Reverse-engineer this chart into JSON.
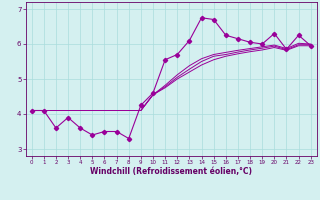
{
  "xlabel": "Windchill (Refroidissement éolien,°C)",
  "x_values": [
    0,
    1,
    2,
    3,
    4,
    5,
    6,
    7,
    8,
    9,
    10,
    11,
    12,
    13,
    14,
    15,
    16,
    17,
    18,
    19,
    20,
    21,
    22,
    23
  ],
  "line1": [
    4.1,
    4.1,
    3.6,
    3.9,
    3.6,
    3.4,
    3.5,
    3.5,
    3.3,
    4.25,
    4.6,
    5.55,
    5.7,
    6.1,
    6.75,
    6.7,
    6.25,
    6.15,
    6.05,
    6.0,
    6.3,
    5.85,
    6.25,
    5.95
  ],
  "line2": [
    4.1,
    4.1,
    4.1,
    4.1,
    4.1,
    4.1,
    4.1,
    4.1,
    4.1,
    4.1,
    4.55,
    4.75,
    5.0,
    5.2,
    5.4,
    5.55,
    5.65,
    5.72,
    5.78,
    5.83,
    5.9,
    5.82,
    5.95,
    5.95
  ],
  "line3": [
    4.1,
    4.1,
    4.1,
    4.1,
    4.1,
    4.1,
    4.1,
    4.1,
    4.1,
    4.1,
    4.55,
    4.78,
    5.05,
    5.28,
    5.5,
    5.65,
    5.7,
    5.77,
    5.83,
    5.88,
    5.94,
    5.84,
    5.98,
    5.98
  ],
  "line4": [
    4.1,
    4.1,
    4.1,
    4.1,
    4.1,
    4.1,
    4.1,
    4.1,
    4.1,
    4.1,
    4.55,
    4.82,
    5.12,
    5.38,
    5.58,
    5.7,
    5.76,
    5.82,
    5.87,
    5.92,
    5.97,
    5.87,
    6.02,
    6.0
  ],
  "line_color": "#990099",
  "bg_color": "#d4f0f0",
  "grid_color": "#aadddd",
  "axis_color": "#660066",
  "ylim": [
    2.8,
    7.2
  ],
  "xlim": [
    -0.5,
    23.5
  ],
  "yticks": [
    3,
    4,
    5,
    6,
    7
  ],
  "xticks": [
    0,
    1,
    2,
    3,
    4,
    5,
    6,
    7,
    8,
    9,
    10,
    11,
    12,
    13,
    14,
    15,
    16,
    17,
    18,
    19,
    20,
    21,
    22,
    23
  ]
}
